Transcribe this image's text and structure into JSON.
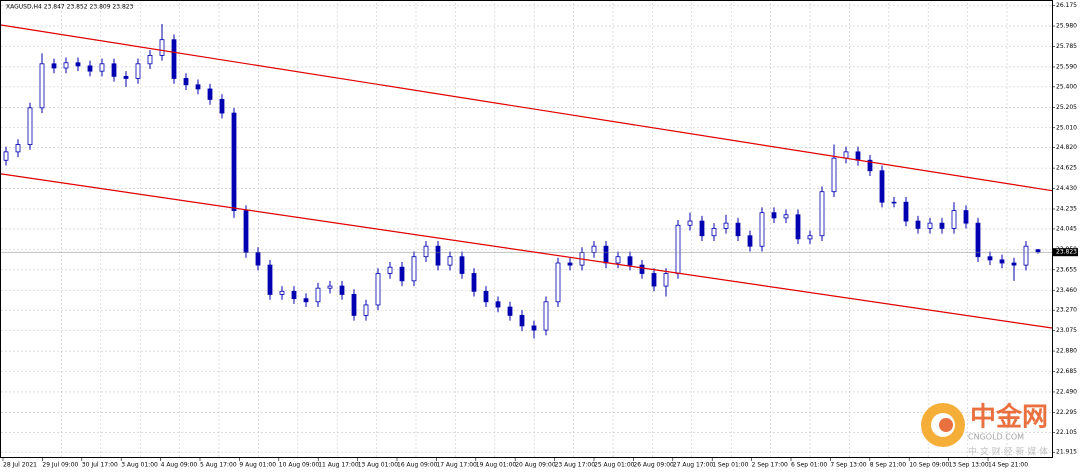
{
  "chart_data": {
    "type": "candlestick",
    "title": "XAGUSD,H4 23.847 23.852 23.809 23.823",
    "color": "#0000b0",
    "grid": true,
    "ylim": [
      21.86,
      26.2
    ],
    "yticks": [
      {
        "value": 26.175,
        "label": "26.175"
      },
      {
        "value": 25.98,
        "label": "25.980"
      },
      {
        "value": 25.785,
        "label": "25.785"
      },
      {
        "value": 25.59,
        "label": "25.590"
      },
      {
        "value": 25.4,
        "label": "25.400"
      },
      {
        "value": 25.205,
        "label": "25.205"
      },
      {
        "value": 25.01,
        "label": "25.010"
      },
      {
        "value": 24.82,
        "label": "24.820"
      },
      {
        "value": 24.625,
        "label": "24.625"
      },
      {
        "value": 24.43,
        "label": "24.430"
      },
      {
        "value": 24.235,
        "label": "24.235"
      },
      {
        "value": 24.045,
        "label": "24.045"
      },
      {
        "value": 23.85,
        "label": "23.850"
      },
      {
        "value": 23.655,
        "label": "23.655"
      },
      {
        "value": 23.46,
        "label": "23.460"
      },
      {
        "value": 23.27,
        "label": "23.270"
      },
      {
        "value": 23.075,
        "label": "23.075"
      },
      {
        "value": 22.88,
        "label": "22.880"
      },
      {
        "value": 22.685,
        "label": "22.685"
      },
      {
        "value": 22.49,
        "label": "22.490"
      },
      {
        "value": 22.295,
        "label": "22.295"
      },
      {
        "value": 22.105,
        "label": "22.105"
      },
      {
        "value": 21.915,
        "label": "21.915"
      }
    ],
    "x_labels": [
      "28 Jul 2021",
      "29 Jul 09:00",
      "30 Jul 17:00",
      "3 Aug 01:00",
      "4 Aug 09:00",
      "5 Aug 17:00",
      "9 Aug 01:00",
      "10 Aug 09:00",
      "11 Aug 17:00",
      "13 Aug 01:00",
      "16 Aug 09:00",
      "17 Aug 17:00",
      "19 Aug 01:00",
      "20 Aug 09:00",
      "23 Aug 17:00",
      "25 Aug 01:00",
      "26 Aug 09:00",
      "27 Aug 17:00",
      "1 Sep 01:00",
      "2 Sep 17:00",
      "6 Sep 01:00",
      "7 Sep 13:00",
      "8 Sep 21:00",
      "10 Sep 09:00",
      "13 Sep 13:00",
      "14 Sep 21:00"
    ],
    "open": [
      24.7,
      24.78,
      24.85,
      25.2,
      25.62,
      25.58,
      25.63,
      25.6,
      25.55,
      25.62,
      25.5,
      25.48,
      25.62,
      25.7,
      25.85,
      25.48,
      25.42,
      25.38,
      25.28,
      25.15,
      24.22,
      23.82,
      23.7,
      23.42,
      23.45,
      23.38,
      23.35,
      23.48,
      23.5,
      23.42,
      23.22,
      23.32,
      23.62,
      23.68,
      23.55,
      23.78,
      23.88,
      23.7,
      23.78,
      23.62,
      23.45,
      23.35,
      23.3,
      23.22,
      23.12,
      23.08,
      23.35,
      23.72,
      23.7,
      23.82,
      23.88,
      23.72,
      23.78,
      23.7,
      23.62,
      23.5,
      23.62,
      24.08,
      24.12,
      23.98,
      24.05,
      24.1,
      23.98,
      23.88,
      24.2,
      24.15,
      24.18,
      23.95,
      23.98,
      24.4,
      24.72,
      24.78,
      24.7,
      24.6,
      24.3,
      24.3,
      24.12,
      24.05,
      24.1,
      24.05,
      24.22,
      24.1,
      23.78,
      23.75,
      23.72,
      23.7,
      23.847
    ],
    "high": [
      24.83,
      24.9,
      25.25,
      25.72,
      25.67,
      25.68,
      25.68,
      25.65,
      25.67,
      25.67,
      25.55,
      25.67,
      25.75,
      26.0,
      25.9,
      25.53,
      25.47,
      25.43,
      25.33,
      25.2,
      24.27,
      23.87,
      23.75,
      23.5,
      23.5,
      23.43,
      23.53,
      23.55,
      23.55,
      23.47,
      23.37,
      23.67,
      23.73,
      23.73,
      23.83,
      23.93,
      23.93,
      23.83,
      23.83,
      23.67,
      23.5,
      23.4,
      23.35,
      23.27,
      23.17,
      23.4,
      23.77,
      23.77,
      23.87,
      23.93,
      23.93,
      23.83,
      23.83,
      23.75,
      23.67,
      23.67,
      24.13,
      24.2,
      24.17,
      24.1,
      24.18,
      24.15,
      24.03,
      24.25,
      24.25,
      24.23,
      24.23,
      24.03,
      24.45,
      24.85,
      24.83,
      24.83,
      24.75,
      24.65,
      24.35,
      24.35,
      24.17,
      24.15,
      24.15,
      24.3,
      24.27,
      24.15,
      23.83,
      23.8,
      23.77,
      23.93,
      23.852
    ],
    "low": [
      24.65,
      24.73,
      24.8,
      25.15,
      25.53,
      25.53,
      25.55,
      25.5,
      25.5,
      25.45,
      25.4,
      25.43,
      25.57,
      25.65,
      25.43,
      25.37,
      25.33,
      25.23,
      25.1,
      24.15,
      23.77,
      23.65,
      23.37,
      23.37,
      23.33,
      23.3,
      23.3,
      23.43,
      23.37,
      23.17,
      23.17,
      23.27,
      23.57,
      23.5,
      23.5,
      23.73,
      23.65,
      23.65,
      23.57,
      23.4,
      23.3,
      23.25,
      23.17,
      23.07,
      23.0,
      23.03,
      23.3,
      23.65,
      23.65,
      23.77,
      23.67,
      23.67,
      23.65,
      23.57,
      23.45,
      23.4,
      23.57,
      24.03,
      23.93,
      23.93,
      24.0,
      23.93,
      23.83,
      23.83,
      24.1,
      24.1,
      23.9,
      23.9,
      23.93,
      24.35,
      24.67,
      24.65,
      24.55,
      24.25,
      24.25,
      24.07,
      24.0,
      24.0,
      24.0,
      24.0,
      24.05,
      23.73,
      23.7,
      23.67,
      23.55,
      23.65,
      23.809
    ],
    "close": [
      24.78,
      24.85,
      25.2,
      25.62,
      25.58,
      25.63,
      25.6,
      25.55,
      25.62,
      25.5,
      25.48,
      25.62,
      25.7,
      25.85,
      25.48,
      25.42,
      25.38,
      25.28,
      25.15,
      24.22,
      23.82,
      23.7,
      23.42,
      23.45,
      23.38,
      23.35,
      23.48,
      23.5,
      23.42,
      23.22,
      23.32,
      23.62,
      23.68,
      23.55,
      23.78,
      23.88,
      23.7,
      23.78,
      23.62,
      23.45,
      23.35,
      23.3,
      23.22,
      23.12,
      23.08,
      23.35,
      23.72,
      23.7,
      23.82,
      23.88,
      23.72,
      23.78,
      23.7,
      23.62,
      23.5,
      23.62,
      24.08,
      24.12,
      23.98,
      24.05,
      24.1,
      23.98,
      23.88,
      24.2,
      24.15,
      24.18,
      23.95,
      23.98,
      24.4,
      24.72,
      24.78,
      24.7,
      24.6,
      24.3,
      24.3,
      24.12,
      24.05,
      24.1,
      24.05,
      24.22,
      24.1,
      23.78,
      23.75,
      23.72,
      23.7,
      23.88,
      23.823
    ],
    "trendlines": [
      {
        "color": "#e00000",
        "start": 25.99,
        "end": 24.41
      },
      {
        "color": "#e00000",
        "start": 24.57,
        "end": 23.1
      }
    ]
  },
  "watermark": {
    "brand": "中金网",
    "site": "CNGOLD.COM",
    "slogan": "中 文 财 经 新 媒 体"
  }
}
